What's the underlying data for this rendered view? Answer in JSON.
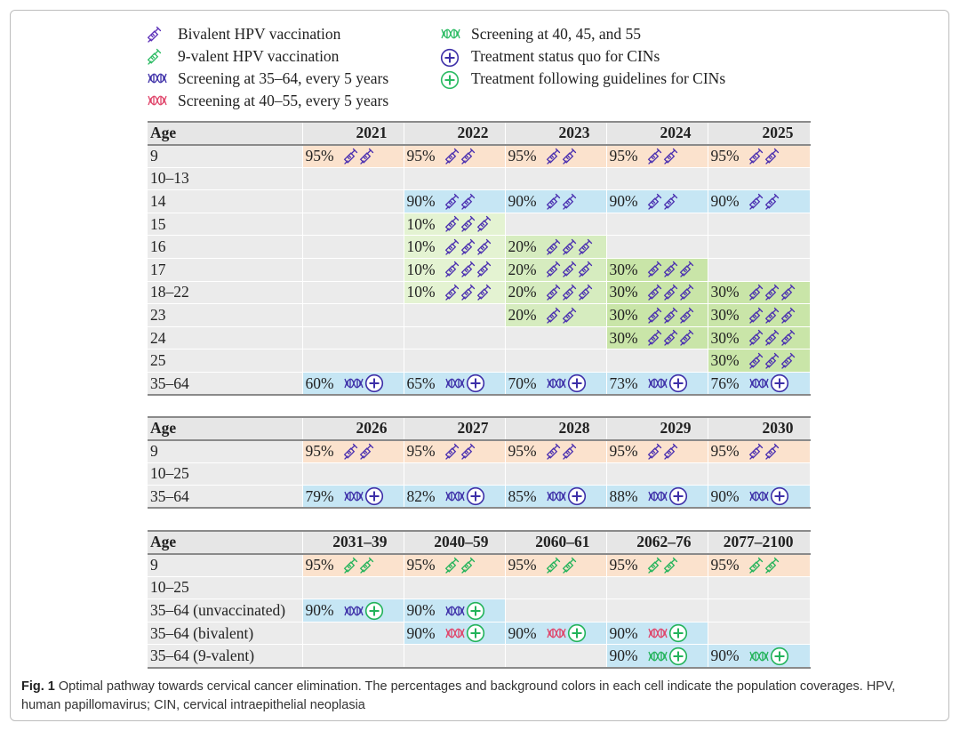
{
  "legend": [
    {
      "label": "Bivalent HPV vaccination",
      "icon": "syringe-icon",
      "color": "#5b2fb8"
    },
    {
      "label": "9-valent HPV vaccination",
      "icon": "syringe-icon",
      "color": "#2bbb63"
    },
    {
      "label": "Screening at 35–64, every 5 years",
      "icon": "dna-icon",
      "color": "#3d2fa8"
    },
    {
      "label": "Screening at 40–55, every 5 years",
      "icon": "dna-icon",
      "color": "#e0446a"
    },
    {
      "label": "Screening at 40, 45, and 55",
      "icon": "dna-icon",
      "color": "#2bbb63"
    },
    {
      "label": "Treatment status quo for CINs",
      "icon": "plus-circle-icon",
      "color": "#3d2fa8"
    },
    {
      "label": "Treatment following guidelines for CINs",
      "icon": "plus-circle-icon",
      "color": "#2bbb63"
    }
  ],
  "colors": {
    "purple": "#4a2fb0",
    "green": "#22b35a",
    "pink": "#e0446a",
    "navy": "#3d2fa8"
  },
  "tables": [
    {
      "age_label": "Age",
      "years": [
        "2021",
        "2022",
        "2023",
        "2024",
        "2025"
      ],
      "rows": [
        {
          "age": "9",
          "cells": [
            {
              "pct": "95%",
              "bg": "orange",
              "icon": "syr2p"
            },
            {
              "pct": "95%",
              "bg": "orange",
              "icon": "syr2p"
            },
            {
              "pct": "95%",
              "bg": "orange",
              "icon": "syr2p"
            },
            {
              "pct": "95%",
              "bg": "orange",
              "icon": "syr2p"
            },
            {
              "pct": "95%",
              "bg": "orange",
              "icon": "syr2p"
            }
          ]
        },
        {
          "age": "10–13",
          "cells": [
            {},
            {},
            {},
            {},
            {}
          ]
        },
        {
          "age": "14",
          "cells": [
            {},
            {
              "pct": "90%",
              "bg": "blue",
              "icon": "syr2p"
            },
            {
              "pct": "90%",
              "bg": "blue",
              "icon": "syr2p"
            },
            {
              "pct": "90%",
              "bg": "blue",
              "icon": "syr2p"
            },
            {
              "pct": "90%",
              "bg": "blue",
              "icon": "syr2p"
            }
          ]
        },
        {
          "age": "15",
          "cells": [
            {},
            {
              "pct": "10%",
              "bg": "green",
              "icon": "syr3p"
            },
            {},
            {},
            {}
          ]
        },
        {
          "age": "16",
          "cells": [
            {},
            {
              "pct": "10%",
              "bg": "green",
              "icon": "syr3p"
            },
            {
              "pct": "20%",
              "bg": "green2",
              "icon": "syr3p"
            },
            {},
            {}
          ]
        },
        {
          "age": "17",
          "cells": [
            {},
            {
              "pct": "10%",
              "bg": "green",
              "icon": "syr3p"
            },
            {
              "pct": "20%",
              "bg": "green2",
              "icon": "syr3p"
            },
            {
              "pct": "30%",
              "bg": "green3",
              "icon": "syr3p"
            },
            {}
          ]
        },
        {
          "age": "18–22",
          "cells": [
            {},
            {
              "pct": "10%",
              "bg": "green",
              "icon": "syr3p"
            },
            {
              "pct": "20%",
              "bg": "green2",
              "icon": "syr3p"
            },
            {
              "pct": "30%",
              "bg": "green3",
              "icon": "syr3p"
            },
            {
              "pct": "30%",
              "bg": "green3",
              "icon": "syr3p"
            }
          ]
        },
        {
          "age": "23",
          "cells": [
            {},
            {},
            {
              "pct": "20%",
              "bg": "green2",
              "icon": "syr2p"
            },
            {
              "pct": "30%",
              "bg": "green3",
              "icon": "syr3p"
            },
            {
              "pct": "30%",
              "bg": "green3",
              "icon": "syr3p"
            }
          ]
        },
        {
          "age": "24",
          "cells": [
            {},
            {},
            {},
            {
              "pct": "30%",
              "bg": "green3",
              "icon": "syr3p"
            },
            {
              "pct": "30%",
              "bg": "green3",
              "icon": "syr3p"
            }
          ]
        },
        {
          "age": "25",
          "cells": [
            {},
            {},
            {},
            {},
            {
              "pct": "30%",
              "bg": "green3",
              "icon": "syr3p"
            }
          ]
        },
        {
          "age": "35–64",
          "cells": [
            {
              "pct": "60%",
              "bg": "blue",
              "icon": "scr-navy-plus-navy"
            },
            {
              "pct": "65%",
              "bg": "blue",
              "icon": "scr-navy-plus-navy"
            },
            {
              "pct": "70%",
              "bg": "blue",
              "icon": "scr-navy-plus-navy"
            },
            {
              "pct": "73%",
              "bg": "blue",
              "icon": "scr-navy-plus-navy"
            },
            {
              "pct": "76%",
              "bg": "blue",
              "icon": "scr-navy-plus-navy"
            }
          ]
        }
      ]
    },
    {
      "age_label": "Age",
      "years": [
        "2026",
        "2027",
        "2028",
        "2029",
        "2030"
      ],
      "rows": [
        {
          "age": "9",
          "cells": [
            {
              "pct": "95%",
              "bg": "orange",
              "icon": "syr2p"
            },
            {
              "pct": "95%",
              "bg": "orange",
              "icon": "syr2p"
            },
            {
              "pct": "95%",
              "bg": "orange",
              "icon": "syr2p"
            },
            {
              "pct": "95%",
              "bg": "orange",
              "icon": "syr2p"
            },
            {
              "pct": "95%",
              "bg": "orange",
              "icon": "syr2p"
            }
          ]
        },
        {
          "age": "10–25",
          "cells": [
            {},
            {},
            {},
            {},
            {}
          ]
        },
        {
          "age": "35–64",
          "cells": [
            {
              "pct": "79%",
              "bg": "blue",
              "icon": "scr-navy-plus-navy"
            },
            {
              "pct": "82%",
              "bg": "blue",
              "icon": "scr-navy-plus-navy"
            },
            {
              "pct": "85%",
              "bg": "blue",
              "icon": "scr-navy-plus-navy"
            },
            {
              "pct": "88%",
              "bg": "blue",
              "icon": "scr-navy-plus-navy"
            },
            {
              "pct": "90%",
              "bg": "blue",
              "icon": "scr-navy-plus-navy"
            }
          ]
        }
      ]
    },
    {
      "age_label": "Age",
      "years": [
        "2031–39",
        "2040–59",
        "2060–61",
        "2062–76",
        "2077–2100"
      ],
      "rows": [
        {
          "age": "9",
          "cells": [
            {
              "pct": "95%",
              "bg": "orange",
              "icon": "syr2g"
            },
            {
              "pct": "95%",
              "bg": "orange",
              "icon": "syr2g"
            },
            {
              "pct": "95%",
              "bg": "orange",
              "icon": "syr2g"
            },
            {
              "pct": "95%",
              "bg": "orange",
              "icon": "syr2g"
            },
            {
              "pct": "95%",
              "bg": "orange",
              "icon": "syr2g"
            }
          ]
        },
        {
          "age": "10–25",
          "cells": [
            {},
            {},
            {},
            {},
            {}
          ]
        },
        {
          "age": "35–64 (unvaccinated)",
          "cells": [
            {
              "pct": "90%",
              "bg": "blue",
              "icon": "scr-navy-plus-green"
            },
            {
              "pct": "90%",
              "bg": "blue",
              "icon": "scr-navy-plus-green"
            },
            {},
            {},
            {}
          ]
        },
        {
          "age": "35–64 (bivalent)",
          "cells": [
            {},
            {
              "pct": "90%",
              "bg": "blue",
              "icon": "scr-pink-plus-green"
            },
            {
              "pct": "90%",
              "bg": "blue",
              "icon": "scr-pink-plus-green"
            },
            {
              "pct": "90%",
              "bg": "blue",
              "icon": "scr-pink-plus-green"
            },
            {}
          ]
        },
        {
          "age": "35–64 (9-valent)",
          "cells": [
            {},
            {},
            {},
            {
              "pct": "90%",
              "bg": "blue",
              "icon": "scr-green-plus-green"
            },
            {
              "pct": "90%",
              "bg": "blue",
              "icon": "scr-green-plus-green"
            }
          ]
        }
      ]
    }
  ],
  "caption": {
    "label": "Fig. 1",
    "text": " Optimal pathway towards cervical cancer elimination. The percentages and background colors in each cell indicate the population coverages. HPV, human papillomavirus; CIN, cervical intraepithelial neoplasia"
  }
}
